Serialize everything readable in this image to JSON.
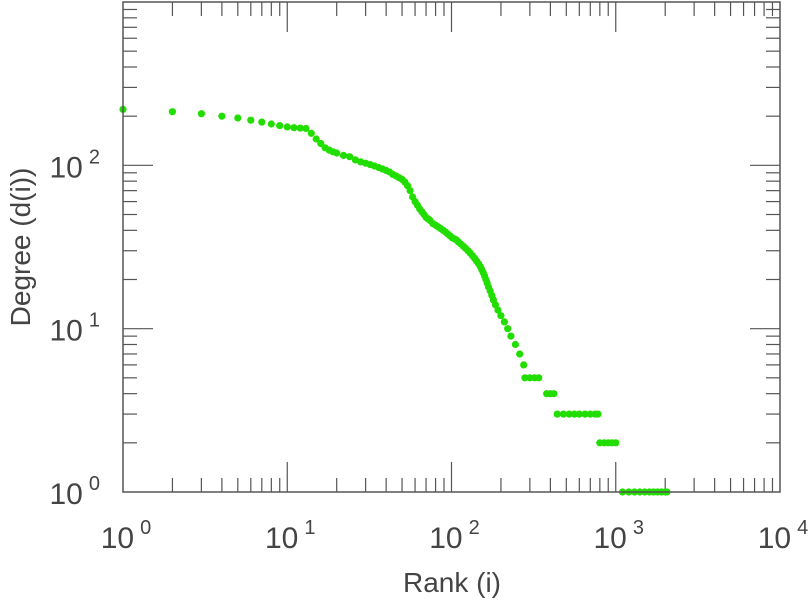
{
  "chart_data": {
    "type": "scatter",
    "title": "",
    "xlabel": "Rank (i)",
    "ylabel": "Degree (d(i))",
    "x_scale": "log",
    "y_scale": "log",
    "xlim": [
      1,
      10000
    ],
    "ylim": [
      1,
      1000
    ],
    "grid": false,
    "legend": "none",
    "marker_color": "#22dd00",
    "x_ticks": [
      {
        "base": "10",
        "exp": "0",
        "value": 1
      },
      {
        "base": "10",
        "exp": "1",
        "value": 10
      },
      {
        "base": "10",
        "exp": "2",
        "value": 100
      },
      {
        "base": "10",
        "exp": "3",
        "value": 1000
      },
      {
        "base": "10",
        "exp": "4",
        "value": 10000
      }
    ],
    "y_ticks": [
      {
        "base": "10",
        "exp": "0",
        "value": 1
      },
      {
        "base": "10",
        "exp": "1",
        "value": 10
      },
      {
        "base": "10",
        "exp": "2",
        "value": 100
      }
    ],
    "series": [
      {
        "points": [
          [
            1,
            220
          ],
          [
            2,
            213
          ],
          [
            3,
            207
          ],
          [
            4,
            200
          ],
          [
            5,
            195
          ],
          [
            6,
            189
          ],
          [
            7,
            184
          ],
          [
            8,
            179
          ],
          [
            9,
            175
          ],
          [
            10,
            172
          ],
          [
            11,
            170
          ],
          [
            12,
            169
          ],
          [
            13,
            168
          ],
          [
            14,
            157
          ],
          [
            15,
            145
          ],
          [
            16,
            136
          ],
          [
            17,
            128
          ],
          [
            18,
            124
          ],
          [
            19,
            121
          ],
          [
            20,
            119
          ],
          [
            22,
            115
          ],
          [
            24,
            113
          ],
          [
            26,
            108
          ],
          [
            28,
            105
          ],
          [
            30,
            103
          ],
          [
            32,
            101
          ],
          [
            34,
            99
          ],
          [
            36,
            97
          ],
          [
            38,
            95
          ],
          [
            40,
            93
          ],
          [
            42,
            91
          ],
          [
            44,
            88
          ],
          [
            46,
            86
          ],
          [
            48,
            84
          ],
          [
            50,
            82
          ],
          [
            52,
            79
          ],
          [
            54,
            75
          ],
          [
            56,
            70
          ],
          [
            58,
            64
          ],
          [
            60,
            60
          ],
          [
            62,
            57
          ],
          [
            64,
            54
          ],
          [
            66,
            52
          ],
          [
            68,
            50
          ],
          [
            70,
            48
          ],
          [
            72,
            47
          ],
          [
            74,
            46
          ],
          [
            77,
            44
          ],
          [
            80,
            43
          ],
          [
            83,
            42
          ],
          [
            86,
            41
          ],
          [
            89,
            40
          ],
          [
            92,
            39
          ],
          [
            95,
            38
          ],
          [
            98,
            37
          ],
          [
            101,
            36
          ],
          [
            104,
            35.5
          ],
          [
            107,
            35
          ],
          [
            110,
            34
          ],
          [
            114,
            33
          ],
          [
            118,
            32
          ],
          [
            122,
            31
          ],
          [
            126,
            30
          ],
          [
            130,
            29
          ],
          [
            134,
            28
          ],
          [
            138,
            27
          ],
          [
            142,
            26
          ],
          [
            146,
            25
          ],
          [
            150,
            24
          ],
          [
            153,
            23
          ],
          [
            156,
            22
          ],
          [
            159,
            21
          ],
          [
            162,
            20
          ],
          [
            165,
            19
          ],
          [
            168,
            18
          ],
          [
            172,
            17
          ],
          [
            176,
            16
          ],
          [
            180,
            15
          ],
          [
            185,
            14
          ],
          [
            192,
            13
          ],
          [
            200,
            12
          ],
          [
            210,
            11
          ],
          [
            220,
            10
          ],
          [
            230,
            9
          ],
          [
            245,
            8
          ],
          [
            260,
            7
          ],
          [
            275,
            6
          ],
          [
            280,
            5
          ],
          [
            300,
            5
          ],
          [
            320,
            5
          ],
          [
            340,
            5
          ],
          [
            380,
            4
          ],
          [
            400,
            4
          ],
          [
            420,
            4
          ],
          [
            440,
            3
          ],
          [
            480,
            3
          ],
          [
            520,
            3
          ],
          [
            560,
            3
          ],
          [
            600,
            3
          ],
          [
            650,
            3
          ],
          [
            700,
            3
          ],
          [
            750,
            3
          ],
          [
            780,
            3
          ],
          [
            800,
            2
          ],
          [
            850,
            2
          ],
          [
            900,
            2
          ],
          [
            950,
            2
          ],
          [
            1000,
            2
          ],
          [
            1100,
            1
          ],
          [
            1200,
            1
          ],
          [
            1300,
            1
          ],
          [
            1400,
            1
          ],
          [
            1500,
            1
          ],
          [
            1600,
            1
          ],
          [
            1700,
            1
          ],
          [
            1800,
            1
          ],
          [
            1900,
            1
          ],
          [
            2000,
            1
          ],
          [
            2050,
            1
          ]
        ]
      }
    ]
  }
}
